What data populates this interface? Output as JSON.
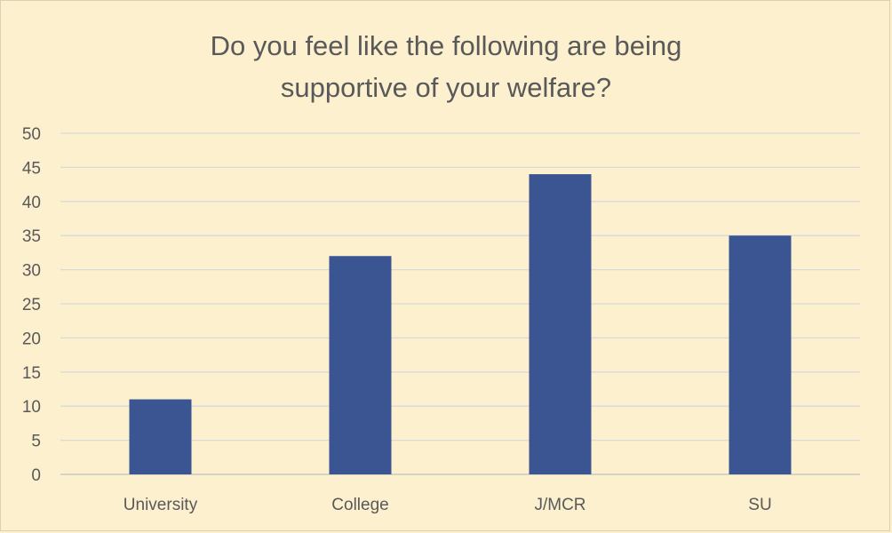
{
  "chart_data": {
    "type": "bar",
    "title_lines": [
      "Do you feel like the following are being",
      "supportive of your welfare?"
    ],
    "categories": [
      "University",
      "College",
      "J/MCR",
      "SU"
    ],
    "values": [
      11,
      32,
      44,
      35
    ],
    "ylim": [
      0,
      50
    ],
    "yticks": [
      0,
      5,
      10,
      15,
      20,
      25,
      30,
      35,
      40,
      45,
      50
    ],
    "grid": true,
    "legend": "none",
    "colors": {
      "bar": "#3a5592",
      "grid": "#d9d9d9",
      "axis": "#bfbfbf",
      "background": "#fdf0cf"
    }
  }
}
